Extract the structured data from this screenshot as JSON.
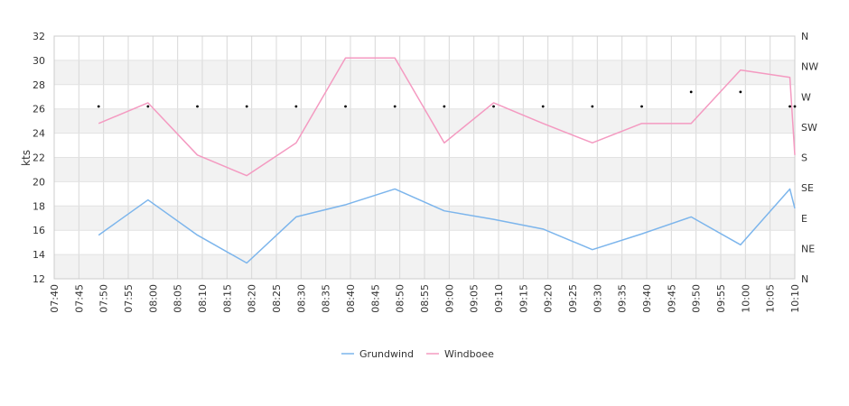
{
  "chart_data": {
    "type": "line",
    "x": [
      "07:40",
      "07:45",
      "07:50",
      "07:55",
      "08:00",
      "08:05",
      "08:10",
      "08:15",
      "08:20",
      "08:25",
      "08:30",
      "08:35",
      "08:40",
      "08:45",
      "08:50",
      "08:55",
      "09:00",
      "09:05",
      "09:10",
      "09:15",
      "09:20",
      "09:25",
      "09:30",
      "09:35",
      "09:40",
      "09:45",
      "09:50",
      "09:55",
      "10:00",
      "10:05",
      "10:10"
    ],
    "ylabel": "kts",
    "ylim": [
      12,
      32
    ],
    "yticks": [
      "12",
      "14",
      "16",
      "18",
      "20",
      "22",
      "24",
      "26",
      "28",
      "30",
      "32"
    ],
    "right_axis_labels": [
      "N",
      "NE",
      "E",
      "SE",
      "S",
      "SW",
      "W",
      "NW",
      "N"
    ],
    "grid": true,
    "legend_position": "bottom",
    "series": [
      {
        "name": "Grundwind",
        "color": "#7cb5ec",
        "points": [
          [
            "07:49",
            15.6
          ],
          [
            "07:59",
            18.5
          ],
          [
            "08:09",
            15.6
          ],
          [
            "08:19",
            13.3
          ],
          [
            "08:29",
            17.1
          ],
          [
            "08:39",
            18.1
          ],
          [
            "08:49",
            19.4
          ],
          [
            "08:59",
            17.6
          ],
          [
            "09:09",
            16.9
          ],
          [
            "09:19",
            16.1
          ],
          [
            "09:29",
            14.4
          ],
          [
            "09:39",
            15.7
          ],
          [
            "09:49",
            17.1
          ],
          [
            "09:59",
            14.8
          ],
          [
            "10:09",
            19.4
          ],
          [
            "10:10",
            17.8
          ]
        ]
      },
      {
        "name": "Windboee",
        "color": "#f49ac1",
        "points": [
          [
            "07:49",
            24.8
          ],
          [
            "07:59",
            26.5
          ],
          [
            "08:09",
            22.2
          ],
          [
            "08:19",
            20.5
          ],
          [
            "08:29",
            23.2
          ],
          [
            "08:39",
            30.2
          ],
          [
            "08:49",
            30.2
          ],
          [
            "08:59",
            23.2
          ],
          [
            "09:09",
            26.5
          ],
          [
            "09:19",
            24.8
          ],
          [
            "09:29",
            23.2
          ],
          [
            "09:39",
            24.8
          ],
          [
            "09:49",
            24.8
          ],
          [
            "09:59",
            29.2
          ],
          [
            "10:09",
            28.6
          ],
          [
            "10:10",
            22.2
          ]
        ]
      }
    ],
    "direction_markers": [
      [
        "07:49",
        26.2
      ],
      [
        "07:59",
        26.2
      ],
      [
        "08:09",
        26.2
      ],
      [
        "08:19",
        26.2
      ],
      [
        "08:29",
        26.2
      ],
      [
        "08:39",
        26.2
      ],
      [
        "08:49",
        26.2
      ],
      [
        "08:59",
        26.2
      ],
      [
        "09:09",
        26.2
      ],
      [
        "09:19",
        26.2
      ],
      [
        "09:29",
        26.2
      ],
      [
        "09:39",
        26.2
      ],
      [
        "09:49",
        27.4
      ],
      [
        "09:59",
        27.4
      ],
      [
        "10:09",
        26.2
      ],
      [
        "10:10",
        26.2
      ]
    ]
  }
}
